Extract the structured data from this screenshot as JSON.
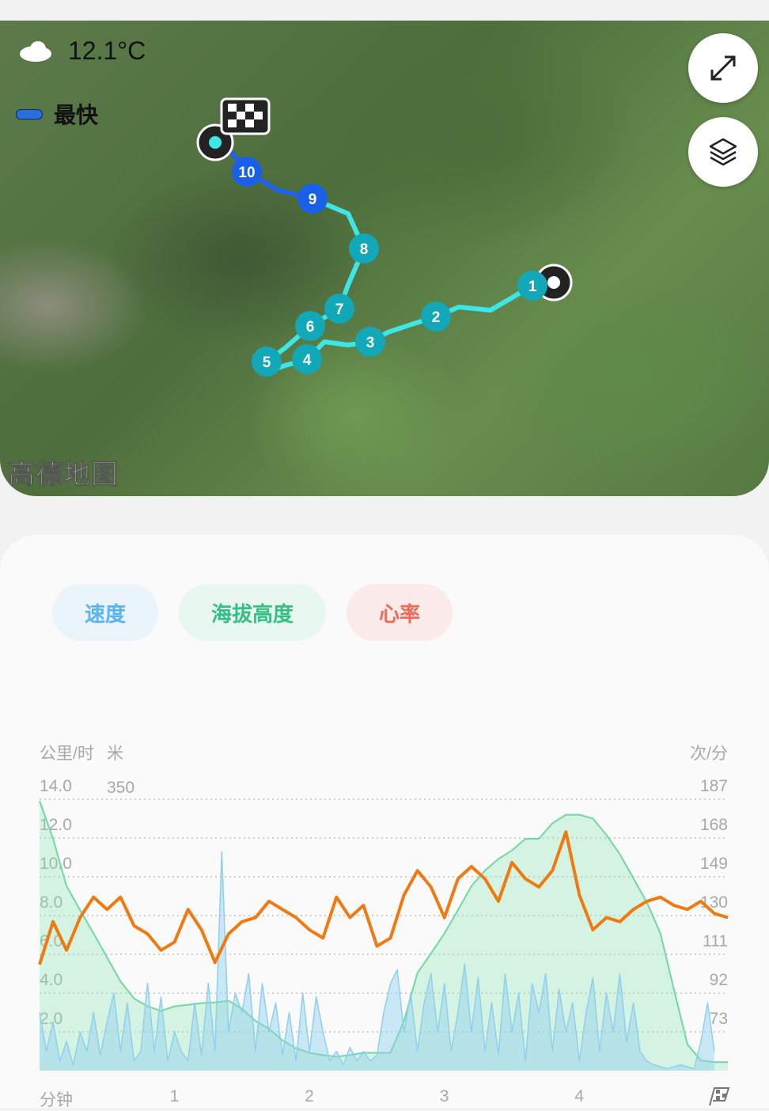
{
  "map": {
    "weather": {
      "icon": "cloud-icon",
      "temperature": "12.1°C"
    },
    "legend": {
      "label": "最快",
      "color": "#2a6fe0"
    },
    "buttons": [
      {
        "name": "expand-button",
        "icon": "expand-icon"
      },
      {
        "name": "layers-button",
        "icon": "layers-icon"
      }
    ],
    "watermark": "高德地图",
    "route_color": "#3ee6e6",
    "fastest_color": "#1f63e8",
    "markers": [
      "1",
      "2",
      "3",
      "4",
      "5",
      "6",
      "7",
      "8",
      "9",
      "10"
    ]
  },
  "tabs": [
    {
      "label": "速度",
      "color": "#5ab4f0",
      "bg": "#eaf4fb"
    },
    {
      "label": "海拔高度",
      "color": "#34c084",
      "bg": "#e8f7ef"
    },
    {
      "label": "心率",
      "color": "#f06a58",
      "bg": "#fbeceb"
    }
  ],
  "chart_data": {
    "type": "line",
    "left_unit_speed": "公里/时",
    "left_unit_altitude": "米",
    "right_unit": "次/分",
    "x_unit": "分钟",
    "finish_icon": "checkered-flag-icon",
    "x_ticks": [
      "1",
      "2",
      "3",
      "4"
    ],
    "speed_ticks": [
      "14.0",
      "12.0",
      "10.0",
      "8.0",
      "6.0",
      "4.0",
      "2.0"
    ],
    "altitude_ticks": [
      "350"
    ],
    "hr_ticks": [
      "187",
      "168",
      "149",
      "130",
      "111",
      "92",
      "73"
    ],
    "xlim": [
      0,
      5.1
    ],
    "speed_ylim": [
      0,
      14
    ],
    "altitude_ylim": [
      0,
      350
    ],
    "hr_ylim": [
      54,
      187
    ],
    "grid": true,
    "series": [
      {
        "name": "心率",
        "color": "#f07a10",
        "x_step": 0.1,
        "values": [
          106,
          127,
          113,
          129,
          139,
          133,
          139,
          125,
          121,
          113,
          117,
          133,
          123,
          107,
          121,
          127,
          129,
          137,
          133,
          129,
          123,
          119,
          139,
          129,
          135,
          115,
          119,
          140,
          152,
          144,
          129,
          148,
          154,
          148,
          137,
          156,
          148,
          144,
          152,
          171,
          140,
          123,
          129,
          127,
          133,
          137,
          139,
          135,
          133,
          137,
          131,
          129
        ]
      },
      {
        "name": "海拔高度",
        "color": "#6fd9a0",
        "x_step": 0.1,
        "values": [
          348,
          299,
          238,
          207,
          177,
          146,
          115,
          93,
          83,
          77,
          83,
          85,
          87,
          88,
          90,
          80,
          64,
          54,
          39,
          29,
          23,
          20,
          18,
          20,
          23,
          23,
          23,
          64,
          126,
          151,
          177,
          207,
          238,
          258,
          273,
          284,
          299,
          299,
          319,
          330,
          330,
          325,
          304,
          279,
          248,
          217,
          177,
          105,
          34,
          13,
          11,
          11
        ]
      },
      {
        "name": "速度",
        "color": "#8fd0ee",
        "x_step": 0.05,
        "values": [
          3,
          1,
          2.5,
          0.5,
          1.5,
          0.3,
          2,
          1,
          3,
          0.8,
          2.5,
          4,
          1,
          3.5,
          0.5,
          1,
          4.5,
          1,
          3.8,
          0.5,
          2,
          1,
          0.5,
          3.5,
          0.8,
          4.5,
          1,
          11.3,
          2,
          4,
          3,
          5,
          1,
          4.5,
          2,
          3.5,
          0.8,
          3,
          0.5,
          4,
          1,
          3.8,
          2,
          0.5,
          1,
          0.3,
          1.2,
          0.5,
          1,
          0.5,
          0.8,
          3,
          4.5,
          5.2,
          2,
          4,
          1,
          3.5,
          5,
          2,
          4.5,
          1,
          3,
          5.5,
          2,
          4.8,
          1,
          3.5,
          0.8,
          5,
          2,
          4,
          0.5,
          4.5,
          3,
          5,
          1,
          4.2,
          2,
          3.5,
          0.5,
          3,
          4.8,
          1,
          4,
          2,
          5,
          1.5,
          3.5,
          1,
          0.5,
          0.3,
          0.2,
          0.1,
          0.2,
          0.3,
          0.2,
          0.1,
          1.5,
          3.5,
          1
        ]
      }
    ]
  }
}
